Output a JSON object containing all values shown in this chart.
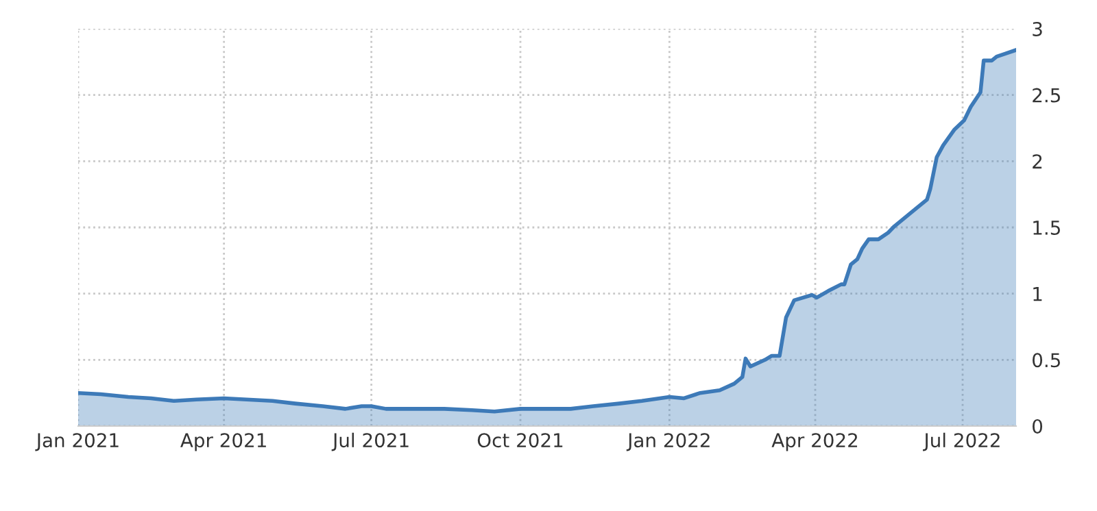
{
  "chart_data": {
    "type": "area",
    "x": [
      "2021-01-01",
      "2021-01-15",
      "2021-02-01",
      "2021-02-15",
      "2021-03-01",
      "2021-03-15",
      "2021-04-01",
      "2021-04-15",
      "2021-05-01",
      "2021-05-15",
      "2021-06-01",
      "2021-06-15",
      "2021-06-25",
      "2021-07-01",
      "2021-07-10",
      "2021-08-01",
      "2021-08-15",
      "2021-09-01",
      "2021-09-15",
      "2021-10-01",
      "2021-10-15",
      "2021-11-01",
      "2021-11-15",
      "2021-12-01",
      "2021-12-15",
      "2022-01-01",
      "2022-01-10",
      "2022-01-20",
      "2022-02-01",
      "2022-02-10",
      "2022-02-15",
      "2022-02-17",
      "2022-02-20",
      "2022-03-01",
      "2022-03-05",
      "2022-03-10",
      "2022-03-14",
      "2022-03-19",
      "2022-03-30",
      "2022-04-02",
      "2022-04-09",
      "2022-04-17",
      "2022-04-19",
      "2022-04-23",
      "2022-04-27",
      "2022-04-30",
      "2022-05-04",
      "2022-05-10",
      "2022-05-16",
      "2022-05-20",
      "2022-05-29",
      "2022-06-02",
      "2022-06-09",
      "2022-06-11",
      "2022-06-15",
      "2022-06-19",
      "2022-06-26",
      "2022-07-02",
      "2022-07-06",
      "2022-07-12",
      "2022-07-14",
      "2022-07-19",
      "2022-07-22",
      "2022-07-27",
      "2022-08-03"
    ],
    "series": [
      {
        "color": "#3d7ab8",
        "values": [
          0.25,
          0.24,
          0.22,
          0.21,
          0.19,
          0.2,
          0.21,
          0.2,
          0.19,
          0.17,
          0.15,
          0.13,
          0.15,
          0.15,
          0.13,
          0.13,
          0.13,
          0.12,
          0.11,
          0.13,
          0.13,
          0.13,
          0.15,
          0.17,
          0.19,
          0.22,
          0.21,
          0.25,
          0.27,
          0.32,
          0.37,
          0.51,
          0.45,
          0.5,
          0.53,
          0.53,
          0.82,
          0.95,
          0.99,
          0.97,
          1.02,
          1.07,
          1.07,
          1.22,
          1.26,
          1.34,
          1.41,
          1.41,
          1.46,
          1.51,
          1.6,
          1.64,
          1.71,
          1.79,
          2.03,
          2.12,
          2.24,
          2.31,
          2.41,
          2.52,
          2.76,
          2.76,
          2.79,
          2.81,
          2.84
        ]
      }
    ],
    "xlim": [
      "2021-01-01",
      "2022-08-03"
    ],
    "xticks": [
      {
        "value": "2021-01-01",
        "label": "Jan 2021"
      },
      {
        "value": "2021-04-01",
        "label": "Apr 2021"
      },
      {
        "value": "2021-07-01",
        "label": "Jul 2021"
      },
      {
        "value": "2021-10-01",
        "label": "Oct 2021"
      },
      {
        "value": "2022-01-01",
        "label": "Jan 2022"
      },
      {
        "value": "2022-04-01",
        "label": "Apr 2022"
      },
      {
        "value": "2022-07-01",
        "label": "Jul 2022"
      }
    ],
    "ylim": [
      0,
      3
    ],
    "yticks": [
      0,
      0.5,
      1,
      1.5,
      2,
      2.5,
      3
    ],
    "grid": true,
    "legend": false
  }
}
